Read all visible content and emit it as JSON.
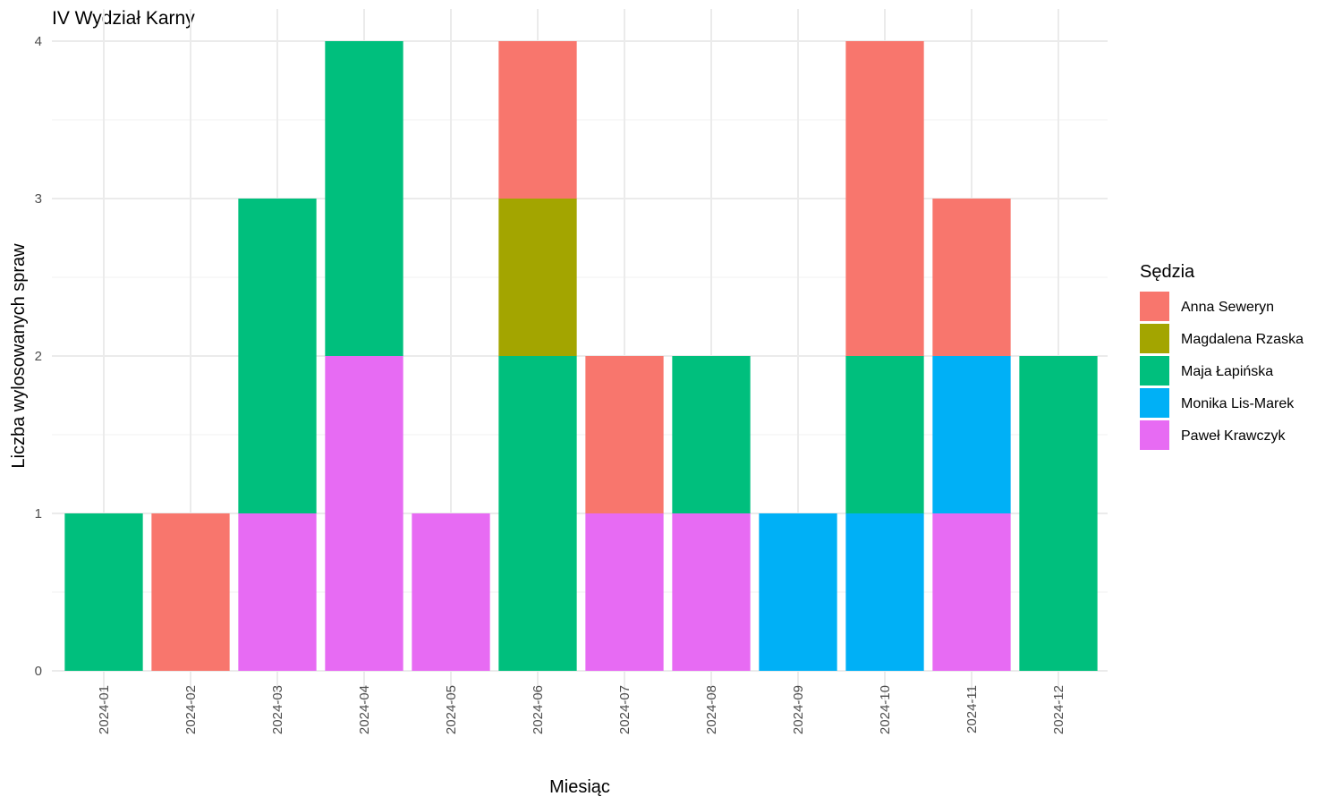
{
  "chart_data": {
    "type": "bar",
    "stacked": true,
    "title": "IV Wydział Karny",
    "xlabel": "Miesiąc",
    "ylabel": "Liczba wylosowanych spraw",
    "ylim": [
      0,
      4
    ],
    "yticks": [
      0,
      1,
      2,
      3,
      4
    ],
    "grid": true,
    "legend_title": "Sędzia",
    "legend_position": "right",
    "categories": [
      "2024-01",
      "2024-02",
      "2024-03",
      "2024-04",
      "2024-05",
      "2024-06",
      "2024-07",
      "2024-08",
      "2024-09",
      "2024-10",
      "2024-11",
      "2024-12"
    ],
    "series": [
      {
        "name": "Anna Seweryn",
        "color": "#F8766D",
        "values": [
          0,
          1,
          0,
          0,
          0,
          1,
          1,
          0,
          0,
          2,
          1,
          0
        ]
      },
      {
        "name": "Magdalena Rzaska",
        "color": "#A3A500",
        "values": [
          0,
          0,
          0,
          0,
          0,
          1,
          0,
          0,
          0,
          0,
          0,
          0
        ]
      },
      {
        "name": "Maja Łapińska",
        "color": "#00BF7D",
        "values": [
          1,
          0,
          2,
          2,
          0,
          2,
          0,
          1,
          0,
          1,
          0,
          2
        ]
      },
      {
        "name": "Monika Lis-Marek",
        "color": "#00B0F6",
        "values": [
          0,
          0,
          0,
          0,
          0,
          0,
          0,
          0,
          1,
          1,
          1,
          0
        ]
      },
      {
        "name": "Paweł Krawczyk",
        "color": "#E76BF3",
        "values": [
          0,
          0,
          1,
          2,
          1,
          0,
          1,
          1,
          0,
          0,
          1,
          0
        ]
      }
    ]
  }
}
